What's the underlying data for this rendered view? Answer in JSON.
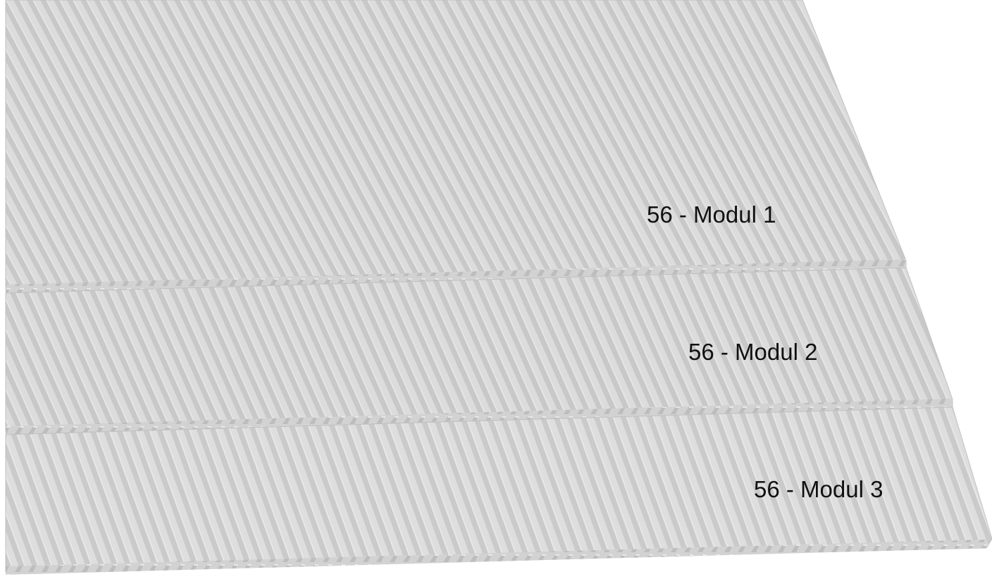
{
  "modules": [
    {
      "label": "56 - Modul 1"
    },
    {
      "label": "56 - Modul 2"
    },
    {
      "label": "56 - Modul 3"
    }
  ],
  "colors": {
    "background": "#ffffff",
    "panel_light": "#dcdcdc",
    "panel_dark": "#c9c9c9",
    "panel_edge": "#bcbcbc",
    "label_text": "#111111"
  }
}
